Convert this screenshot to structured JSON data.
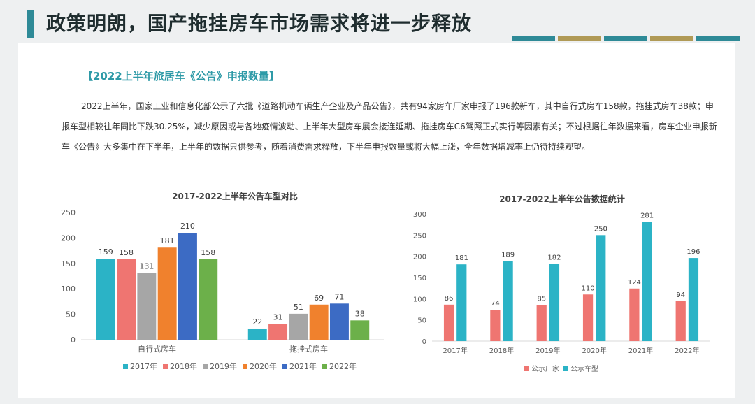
{
  "header": {
    "title": "政策明朗，国产拖挂房车市场需求将进一步释放",
    "accent_color": "#2e8a97",
    "decor_colors": [
      "#2e8a97",
      "#b09a56",
      "#2e8a97",
      "#b09a56",
      "#2e8a97"
    ]
  },
  "section": {
    "heading": "【2022上半年旅居车《公告》申报数量】",
    "paragraph": "2022上半年，国家工业和信息化部公示了六批《道路机动车辆生产企业及产品公告》，共有94家房车厂家申报了196款新车，其中自行式房车158款，拖挂式房车38款；申报车型相较往年同比下跌30.25%，减少原因或与各地疫情波动、上半年大型房车展会接连延期、拖挂房车C6驾照正式实行等因素有关；不过根据往年数据来看，房车企业申报新车《公告》大多集中在下半年，上半年的数据只供参考，随着消费需求释放，下半年申报数量或将大幅上涨，全年数据增减率上仍待持续观望。"
  },
  "chart_data": [
    {
      "type": "bar",
      "title": "2017-2022上半年公告车型对比",
      "categories": [
        "自行式房车",
        "拖挂式房车"
      ],
      "series": [
        {
          "name": "2017年",
          "color": "#2bb3c6",
          "values": [
            159,
            22
          ]
        },
        {
          "name": "2018年",
          "color": "#ef7571",
          "values": [
            158,
            31
          ]
        },
        {
          "name": "2019年",
          "color": "#a6a6a6",
          "values": [
            131,
            51
          ]
        },
        {
          "name": "2020年",
          "color": "#f0812d",
          "values": [
            181,
            69
          ]
        },
        {
          "name": "2021年",
          "color": "#3c6bc4",
          "values": [
            210,
            71
          ]
        },
        {
          "name": "2022年",
          "color": "#6cb04a",
          "values": [
            158,
            38
          ]
        }
      ],
      "ylim": [
        0,
        250
      ],
      "yticks": [
        0,
        50,
        100,
        150,
        200,
        250
      ],
      "legend": "bottom"
    },
    {
      "type": "bar",
      "title": "2017-2022上半年公告数据统计",
      "categories": [
        "2017年",
        "2018年",
        "2019年",
        "2020年",
        "2021年",
        "2022年"
      ],
      "series": [
        {
          "name": "公示厂家",
          "color": "#ef7571",
          "values": [
            86,
            74,
            85,
            110,
            124,
            94
          ]
        },
        {
          "name": "公示车型",
          "color": "#2bb3c6",
          "values": [
            181,
            189,
            182,
            250,
            281,
            196
          ]
        }
      ],
      "ylim": [
        0,
        300
      ],
      "yticks": [
        0,
        50,
        100,
        150,
        200,
        250,
        300
      ],
      "legend": "bottom"
    }
  ]
}
